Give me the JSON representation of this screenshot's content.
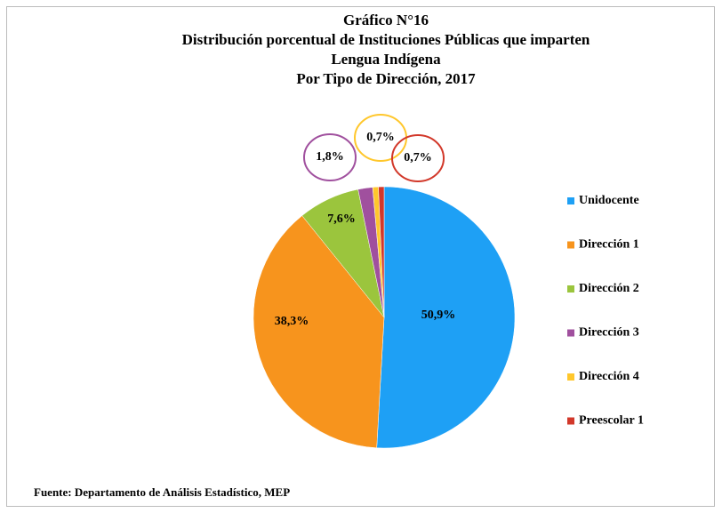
{
  "chart_data": {
    "type": "pie",
    "title": [
      "Gráfico N°16",
      "Distribución porcentual de Instituciones Públicas que imparten",
      "Lengua Indígena",
      "Por Tipo de Dirección, 2017"
    ],
    "categories": [
      "Unidocente",
      "Dirección 1",
      "Dirección 2",
      "Dirección 3",
      "Dirección 4",
      "Preescolar 1"
    ],
    "values": [
      50.9,
      38.3,
      7.6,
      1.8,
      0.7,
      0.7
    ],
    "value_labels": [
      "50,9%",
      "38,3%",
      "7,6%",
      "1,8%",
      "0,7%",
      "0,7%"
    ],
    "colors": [
      "#1ea0f5",
      "#f7941d",
      "#9bc53d",
      "#a0509e",
      "#ffc72c",
      "#d2382a"
    ],
    "legend": "right",
    "source": "Fuente: Departamento de Análisis Estadístico, MEP"
  }
}
